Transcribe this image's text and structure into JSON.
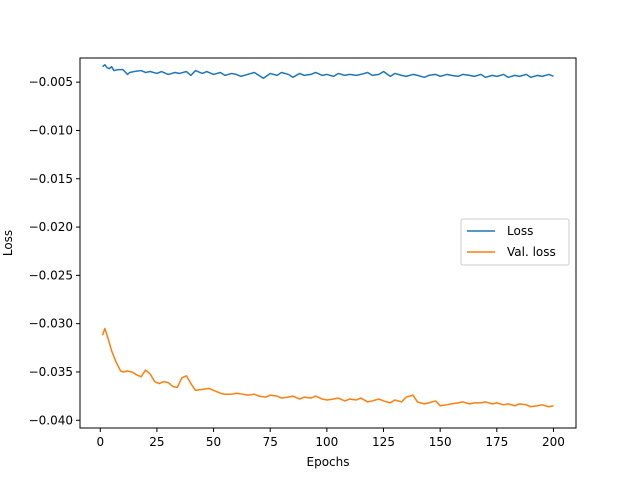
{
  "chart_data": {
    "type": "line",
    "title": "",
    "xlabel": "Epochs",
    "ylabel": "Loss",
    "xlim": [
      -8.95,
      209.95
    ],
    "ylim": [
      -0.0408,
      -0.0025
    ],
    "xticks": [
      0,
      25,
      50,
      75,
      100,
      125,
      150,
      175,
      200
    ],
    "xtick_labels": [
      "0",
      "25",
      "50",
      "75",
      "100",
      "125",
      "150",
      "175",
      "200"
    ],
    "yticks": [
      -0.005,
      -0.01,
      -0.015,
      -0.02,
      -0.025,
      -0.03,
      -0.035,
      -0.04
    ],
    "ytick_labels": [
      "−0.005",
      "−0.010",
      "−0.015",
      "−0.020",
      "−0.025",
      "−0.030",
      "−0.035",
      "−0.040"
    ],
    "grid": false,
    "legend_position": "center-right",
    "series": [
      {
        "name": "Loss",
        "color": "#1f77b4",
        "x": [
          1,
          2,
          3,
          4,
          5,
          6,
          8,
          10,
          12,
          13,
          15,
          18,
          20,
          22,
          25,
          27,
          30,
          33,
          35,
          38,
          40,
          42,
          45,
          47,
          50,
          53,
          55,
          58,
          60,
          62,
          65,
          68,
          70,
          72,
          75,
          78,
          80,
          83,
          85,
          88,
          90,
          93,
          95,
          98,
          100,
          103,
          105,
          108,
          110,
          113,
          115,
          118,
          120,
          123,
          125,
          128,
          130,
          133,
          135,
          138,
          140,
          143,
          145,
          148,
          150,
          153,
          155,
          158,
          160,
          163,
          165,
          168,
          170,
          173,
          175,
          178,
          180,
          183,
          185,
          188,
          190,
          193,
          195,
          198,
          200
        ],
        "y": [
          -0.0034,
          -0.0032,
          -0.0035,
          -0.0036,
          -0.0034,
          -0.0038,
          -0.0037,
          -0.0037,
          -0.0042,
          -0.004,
          -0.0039,
          -0.0038,
          -0.004,
          -0.0039,
          -0.0041,
          -0.0039,
          -0.0042,
          -0.004,
          -0.0041,
          -0.0039,
          -0.0043,
          -0.0038,
          -0.0041,
          -0.0039,
          -0.0042,
          -0.004,
          -0.0043,
          -0.0041,
          -0.0042,
          -0.0044,
          -0.0042,
          -0.004,
          -0.0043,
          -0.0046,
          -0.0041,
          -0.0043,
          -0.004,
          -0.0042,
          -0.0045,
          -0.0041,
          -0.0043,
          -0.0042,
          -0.004,
          -0.0043,
          -0.0042,
          -0.0044,
          -0.0041,
          -0.0043,
          -0.0042,
          -0.0043,
          -0.0042,
          -0.004,
          -0.0043,
          -0.0042,
          -0.0039,
          -0.0044,
          -0.0041,
          -0.0043,
          -0.0044,
          -0.0042,
          -0.0043,
          -0.0045,
          -0.0043,
          -0.0042,
          -0.0044,
          -0.0042,
          -0.0043,
          -0.0044,
          -0.0042,
          -0.0043,
          -0.0044,
          -0.0042,
          -0.0045,
          -0.0043,
          -0.0044,
          -0.0042,
          -0.0045,
          -0.0043,
          -0.0044,
          -0.0042,
          -0.0045,
          -0.0043,
          -0.0044,
          -0.0042,
          -0.0044
        ]
      },
      {
        "name": "Val. loss",
        "color": "#ff7f0e",
        "x": [
          1,
          2,
          3,
          5,
          7,
          9,
          10,
          12,
          14,
          16,
          18,
          20,
          22,
          24,
          26,
          28,
          30,
          32,
          34,
          36,
          38,
          40,
          42,
          45,
          48,
          50,
          53,
          55,
          58,
          60,
          63,
          65,
          68,
          70,
          73,
          75,
          78,
          80,
          83,
          85,
          88,
          90,
          93,
          95,
          98,
          100,
          103,
          105,
          108,
          110,
          113,
          115,
          118,
          120,
          123,
          125,
          128,
          130,
          133,
          135,
          138,
          140,
          143,
          145,
          148,
          150,
          153,
          155,
          158,
          160,
          163,
          165,
          168,
          170,
          173,
          175,
          178,
          180,
          183,
          185,
          188,
          190,
          193,
          195,
          198,
          200
        ],
        "y": [
          -0.0312,
          -0.0305,
          -0.0312,
          -0.0328,
          -0.034,
          -0.0349,
          -0.035,
          -0.0349,
          -0.035,
          -0.0353,
          -0.0355,
          -0.0348,
          -0.0352,
          -0.036,
          -0.0362,
          -0.036,
          -0.0361,
          -0.0365,
          -0.0366,
          -0.0356,
          -0.0354,
          -0.0362,
          -0.0369,
          -0.0368,
          -0.0367,
          -0.0369,
          -0.0372,
          -0.0373,
          -0.0373,
          -0.0372,
          -0.0373,
          -0.0374,
          -0.0373,
          -0.0375,
          -0.0376,
          -0.0374,
          -0.0375,
          -0.0377,
          -0.0376,
          -0.0375,
          -0.0378,
          -0.0376,
          -0.0377,
          -0.0375,
          -0.0378,
          -0.0379,
          -0.0378,
          -0.0377,
          -0.038,
          -0.0378,
          -0.0379,
          -0.0377,
          -0.0381,
          -0.038,
          -0.0378,
          -0.038,
          -0.0382,
          -0.0379,
          -0.0381,
          -0.0376,
          -0.0374,
          -0.0381,
          -0.0383,
          -0.0382,
          -0.038,
          -0.0385,
          -0.0384,
          -0.0383,
          -0.0382,
          -0.0381,
          -0.0383,
          -0.0382,
          -0.0382,
          -0.0381,
          -0.0383,
          -0.0382,
          -0.0384,
          -0.0383,
          -0.0385,
          -0.0383,
          -0.0384,
          -0.0386,
          -0.0385,
          -0.0384,
          -0.0386,
          -0.0385
        ]
      }
    ]
  }
}
